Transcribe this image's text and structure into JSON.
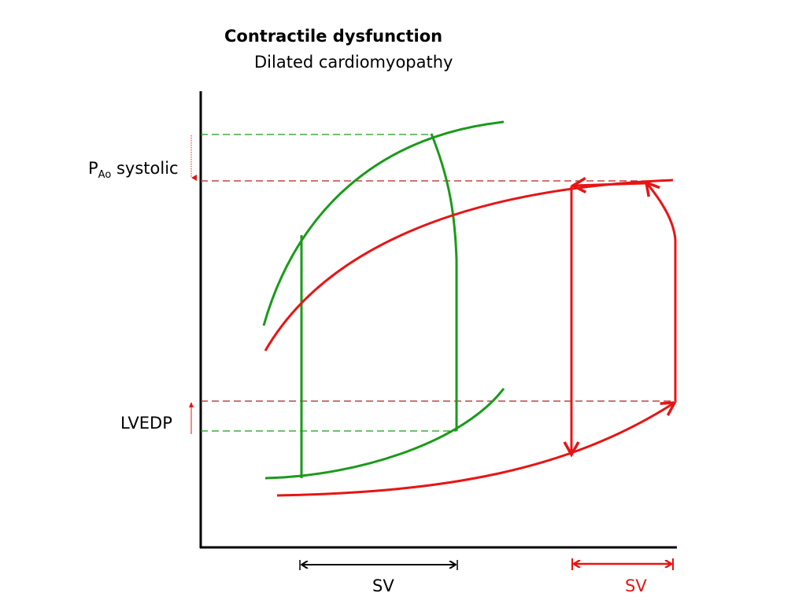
{
  "title": "Contractile dysfunction",
  "subtitle": "Dilated cardiomyopathy",
  "labels": {
    "pao_main": "P",
    "pao_sub": "Ao",
    "pao_suffix": " systolic",
    "lvedp": "LVEDP",
    "sv_normal": "SV",
    "sv_dcm": "SV"
  },
  "colors": {
    "normal": "#1a9a1a",
    "dcm": "#e81414",
    "axis": "#000000",
    "ref_dashed_red": "#b22222",
    "ref_dashed_green": "#1a9a1a"
  },
  "loops": [
    {
      "name": "normal-loop",
      "color": "green"
    },
    {
      "name": "dilated-cardiomyopathy-loop",
      "color": "red"
    }
  ]
}
